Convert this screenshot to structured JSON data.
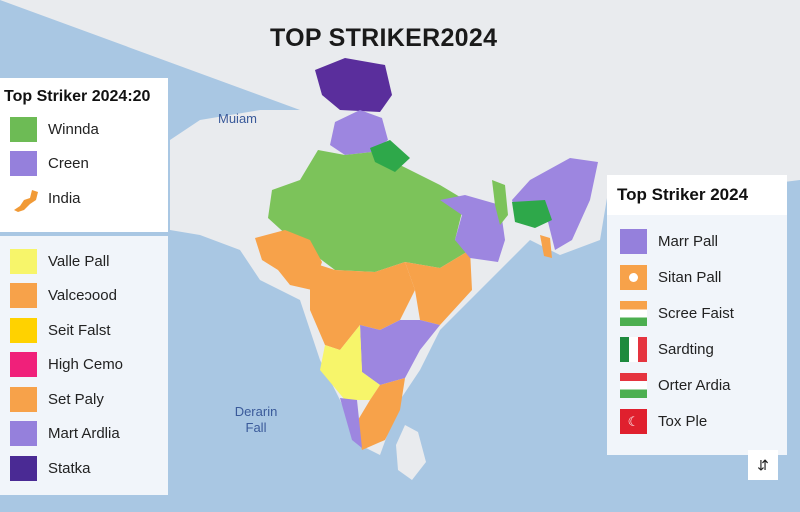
{
  "title": "TOP STRIKER2024",
  "map_labels": {
    "north": "Muiam",
    "sea": "Derarin Fall"
  },
  "legend_top": {
    "title": "Top Striker 2024:20",
    "items": [
      {
        "label": "Winnda",
        "color": "#6dbb55",
        "icon": "square"
      },
      {
        "label": "Creen",
        "color": "#9580dc",
        "icon": "square"
      },
      {
        "label": "India",
        "color": "#f19a36",
        "icon": "india-shape-icon"
      }
    ]
  },
  "legend_bottom": {
    "items": [
      {
        "label": "Valle Pall",
        "color": "#f7f56a",
        "icon": "square"
      },
      {
        "label": "Valceɔood",
        "color": "#f7a24a",
        "icon": "square"
      },
      {
        "label": "Seit Falst",
        "color": "#ffd200",
        "icon": "square"
      },
      {
        "label": "High Cemo",
        "color": "#f0207a",
        "icon": "square"
      },
      {
        "label": "Set Paly",
        "color": "#f7a24a",
        "icon": "square"
      },
      {
        "label": "Mart Ardlia",
        "color": "#9580dc",
        "icon": "square"
      },
      {
        "label": "Statka",
        "color": "#4a2a94",
        "icon": "square"
      }
    ]
  },
  "legend_right": {
    "title": "Top Striker 2024",
    "items": [
      {
        "label": "Marr Pall",
        "icon": "square",
        "color": "#9580dc"
      },
      {
        "label": "Sitan Pall",
        "icon": "flag-icon"
      },
      {
        "label": "Scree Faist",
        "icon": "india-flag-icon"
      },
      {
        "label": "Sardting",
        "icon": "italy-flag-icon"
      },
      {
        "label": "Orter Ardia",
        "icon": "flag-icon"
      },
      {
        "label": "Tox Ple",
        "icon": "turkey-flag-icon"
      }
    ]
  },
  "map_button": "⇵"
}
